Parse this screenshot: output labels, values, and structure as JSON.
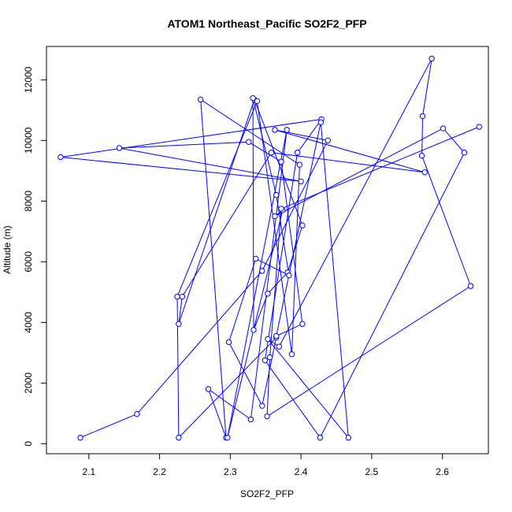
{
  "chart_data": {
    "type": "line",
    "title": "ATOM1 Northeast_Pacific SO2F2_PFP",
    "xlabel": "SO2F2_PFP",
    "ylabel": "Altitude (m)",
    "xlim": [
      2.04,
      2.665
    ],
    "ylim": [
      -330,
      13100
    ],
    "xticks": [
      2.1,
      2.2,
      2.3,
      2.4,
      2.5,
      2.6
    ],
    "xtick_labels": [
      "2.1",
      "2.2",
      "2.3",
      "2.4",
      "2.5",
      "2.6"
    ],
    "yticks": [
      0,
      2000,
      4000,
      6000,
      8000,
      10000,
      12000
    ],
    "ytick_labels": [
      "0",
      "2000",
      "4000",
      "6000",
      "8000",
      "10000",
      "12000"
    ],
    "color": "#0000ff",
    "markers": "open-circle",
    "grid": false,
    "series": [
      {
        "x": [
          2.088,
          2.168,
          2.345,
          2.438,
          2.363,
          2.575,
          2.358,
          2.232,
          2.227,
          2.334,
          2.402,
          2.381,
          2.353,
          2.333,
          2.332,
          2.365,
          2.383,
          2.336,
          2.298,
          2.345,
          2.365,
          2.227,
          2.225,
          2.338,
          2.387,
          2.398,
          2.258,
          2.294,
          2.269,
          2.329,
          2.38,
          2.296,
          2.374,
          2.363,
          2.601,
          2.631,
          2.427,
          2.349,
          2.395,
          2.429,
          2.06,
          2.4,
          2.143,
          2.326,
          2.372,
          2.402,
          2.365,
          2.428,
          2.467,
          2.353,
          2.369,
          2.585,
          2.572,
          2.571,
          2.64,
          2.352,
          2.356,
          2.372,
          2.652
        ],
        "y": [
          200,
          980,
          5700,
          10000,
          10350,
          8950,
          9600,
          4850,
          3950,
          11350,
          7200,
          5650,
          4950,
          3750,
          11400,
          8200,
          5550,
          6100,
          3350,
          1250,
          3500,
          200,
          4850,
          11300,
          2950,
          9200,
          11350,
          200,
          1800,
          800,
          10350,
          200,
          7700,
          7500,
          10400,
          9600,
          200,
          2750,
          9600,
          10700,
          9450,
          8650,
          9750,
          9950,
          9300,
          3950,
          3550,
          10600,
          200,
          3450,
          3200,
          12700,
          10800,
          9500,
          5200,
          900,
          2850,
          7750,
          10450
        ]
      }
    ]
  }
}
